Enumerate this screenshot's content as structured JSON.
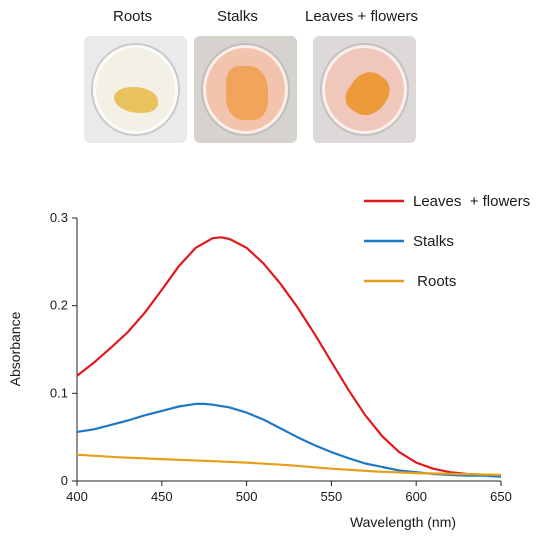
{
  "photos": [
    {
      "label": "Roots",
      "plate_color": "#e9eaec",
      "liquid_color": "#f3f1e6",
      "tissue_color": "#e9c15d"
    },
    {
      "label": "Stalks",
      "plate_color": "#d6d3cf",
      "liquid_color": "#f2c4ad",
      "tissue_color": "#f0a45c"
    },
    {
      "label": "Leaves  + flowers",
      "plate_color": "#dcd9d8",
      "liquid_color": "#f0c8bb",
      "tissue_color": "#ec9a3a"
    }
  ],
  "chart_data": {
    "type": "line",
    "xlabel": "Wavelength (nm)",
    "ylabel": "Absorbance",
    "xlim": [
      400,
      650
    ],
    "ylim": [
      0,
      0.3
    ],
    "xticks": [
      "400",
      "450",
      "500",
      "550",
      "600",
      "650"
    ],
    "yticks": [
      "0",
      "0.1",
      "0.2",
      "0.3"
    ],
    "legend_position": "top-right",
    "series": [
      {
        "name": "Leaves  + flowers",
        "color": "#e0191e",
        "x": [
          400,
          410,
          420,
          430,
          440,
          450,
          460,
          470,
          480,
          485,
          490,
          500,
          510,
          520,
          530,
          540,
          550,
          560,
          570,
          580,
          590,
          600,
          610,
          620,
          630,
          640,
          650
        ],
        "y": [
          0.12,
          0.135,
          0.152,
          0.17,
          0.192,
          0.218,
          0.245,
          0.266,
          0.277,
          0.278,
          0.276,
          0.266,
          0.248,
          0.225,
          0.198,
          0.168,
          0.136,
          0.104,
          0.075,
          0.051,
          0.033,
          0.021,
          0.014,
          0.01,
          0.008,
          0.007,
          0.006
        ]
      },
      {
        "name": "Stalks",
        "color": "#1f78c4",
        "x": [
          400,
          410,
          420,
          430,
          440,
          450,
          460,
          470,
          475,
          480,
          490,
          500,
          510,
          520,
          530,
          540,
          550,
          560,
          570,
          580,
          590,
          600,
          610,
          620,
          630,
          640,
          650
        ],
        "y": [
          0.056,
          0.059,
          0.064,
          0.069,
          0.075,
          0.08,
          0.085,
          0.088,
          0.088,
          0.087,
          0.084,
          0.078,
          0.07,
          0.06,
          0.05,
          0.041,
          0.033,
          0.026,
          0.02,
          0.016,
          0.012,
          0.01,
          0.008,
          0.007,
          0.006,
          0.006,
          0.005
        ]
      },
      {
        "name": " Roots",
        "color": "#e5a019",
        "x": [
          400,
          425,
          450,
          475,
          500,
          525,
          550,
          575,
          600,
          625,
          650
        ],
        "y": [
          0.03,
          0.027,
          0.025,
          0.023,
          0.021,
          0.018,
          0.014,
          0.011,
          0.009,
          0.008,
          0.007
        ]
      }
    ]
  }
}
